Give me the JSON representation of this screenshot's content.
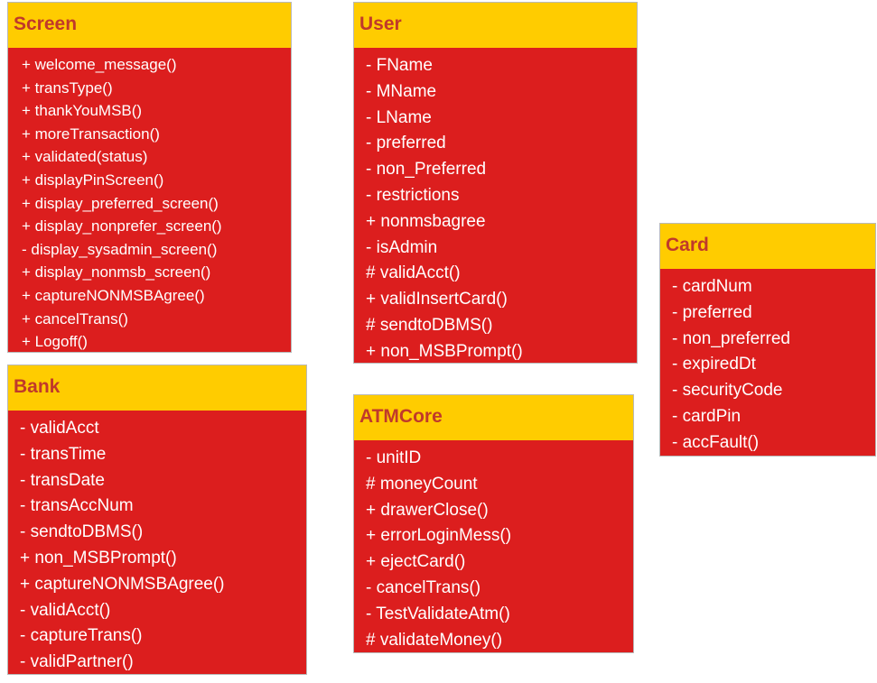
{
  "classes": {
    "screen": {
      "name": "Screen",
      "members": [
        "+ welcome_message()",
        "+ transType()",
        "+ thankYouMSB()",
        "+ moreTransaction()",
        "+ validated(status)",
        "+ displayPinScreen()",
        "+ display_preferred_screen()",
        "+ display_nonprefer_screen()",
        "- display_sysadmin_screen()",
        "+ display_nonmsb_screen()",
        "+ captureNONMSBAgree()",
        "+ cancelTrans()",
        "+ Logoff()"
      ]
    },
    "user": {
      "name": "User",
      "members": [
        "- FName",
        "- MName",
        "- LName",
        "- preferred",
        "- non_Preferred",
        "- restrictions",
        "+ nonmsbagree",
        "- isAdmin",
        "# validAcct()",
        "+ validInsertCard()",
        "# sendtoDBMS()",
        "+ non_MSBPrompt()"
      ]
    },
    "card": {
      "name": "Card",
      "members": [
        "- cardNum",
        "- preferred",
        "- non_preferred",
        "- expiredDt",
        "- securityCode",
        "- cardPin",
        "- accFault()"
      ]
    },
    "bank": {
      "name": "Bank",
      "members": [
        "- validAcct",
        "- transTime",
        "- transDate",
        "- transAccNum",
        "- sendtoDBMS()",
        "+ non_MSBPrompt()",
        "+ captureNONMSBAgree()",
        "- validAcct()",
        "- captureTrans()",
        "- validPartner()"
      ]
    },
    "atmcore": {
      "name": "ATMCore",
      "members": [
        "- unitID",
        "# moneyCount",
        "+ drawerClose()",
        "+ errorLoginMess()",
        "+ ejectCard()",
        "- cancelTrans()",
        "- TestValidateAtm()",
        "# validateMoney()"
      ]
    }
  },
  "colors": {
    "header_bg": "#ffcc00",
    "header_text": "#c0392b",
    "body_bg": "#dc1e1e",
    "body_text": "#ffffff"
  }
}
